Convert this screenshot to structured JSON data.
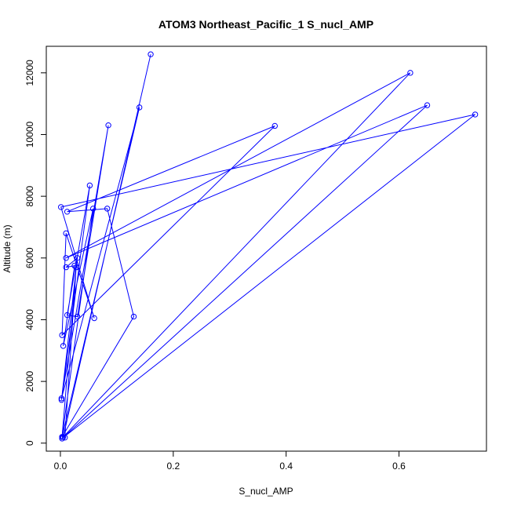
{
  "chart_data": {
    "type": "line",
    "title": "ATOM3 Northeast_Pacific_1 S_nucl_AMP",
    "xlabel": "S_nucl_AMP",
    "ylabel": "Altitude (m)",
    "xlim": [
      -0.025,
      0.755
    ],
    "ylim": [
      -260,
      12860
    ],
    "xticks": [
      0.0,
      0.2,
      0.4,
      0.6
    ],
    "xtick_labels": [
      "0.0",
      "0.2",
      "0.4",
      "0.6"
    ],
    "yticks": [
      0,
      2000,
      4000,
      6000,
      8000,
      10000,
      12000
    ],
    "ytick_labels": [
      "0",
      "2000",
      "4000",
      "6000",
      "8000",
      "10000",
      "12000"
    ],
    "grid": false,
    "color": "#0000ff",
    "markers": "open-circle",
    "series": [
      {
        "points": [
          [
            0.16,
            12600
          ],
          [
            0.005,
            200
          ],
          [
            0.62,
            12000
          ],
          [
            0.01,
            6000
          ],
          [
            0.65,
            10950
          ],
          [
            0.003,
            150
          ],
          [
            0.735,
            10650
          ],
          [
            0.001,
            7650
          ],
          [
            0.06,
            4050
          ],
          [
            0.01,
            6800
          ],
          [
            0.003,
            3500
          ],
          [
            0.38,
            10280
          ],
          [
            0.012,
            7500
          ],
          [
            0.083,
            7600
          ],
          [
            0.13,
            4100
          ],
          [
            0.003,
            200
          ],
          [
            0.14,
            10880
          ],
          [
            0.002,
            1450
          ],
          [
            0.085,
            10300
          ],
          [
            0.03,
            4100
          ],
          [
            0.012,
            4150
          ],
          [
            0.052,
            8350
          ],
          [
            0.002,
            1400
          ],
          [
            0.03,
            6000
          ],
          [
            0.01,
            5700
          ],
          [
            0.025,
            5750
          ],
          [
            0.005,
            3150
          ],
          [
            0.058,
            7600
          ],
          [
            0.003,
            200
          ],
          [
            0.028,
            5700
          ],
          [
            0.008,
            180
          ]
        ]
      }
    ]
  }
}
